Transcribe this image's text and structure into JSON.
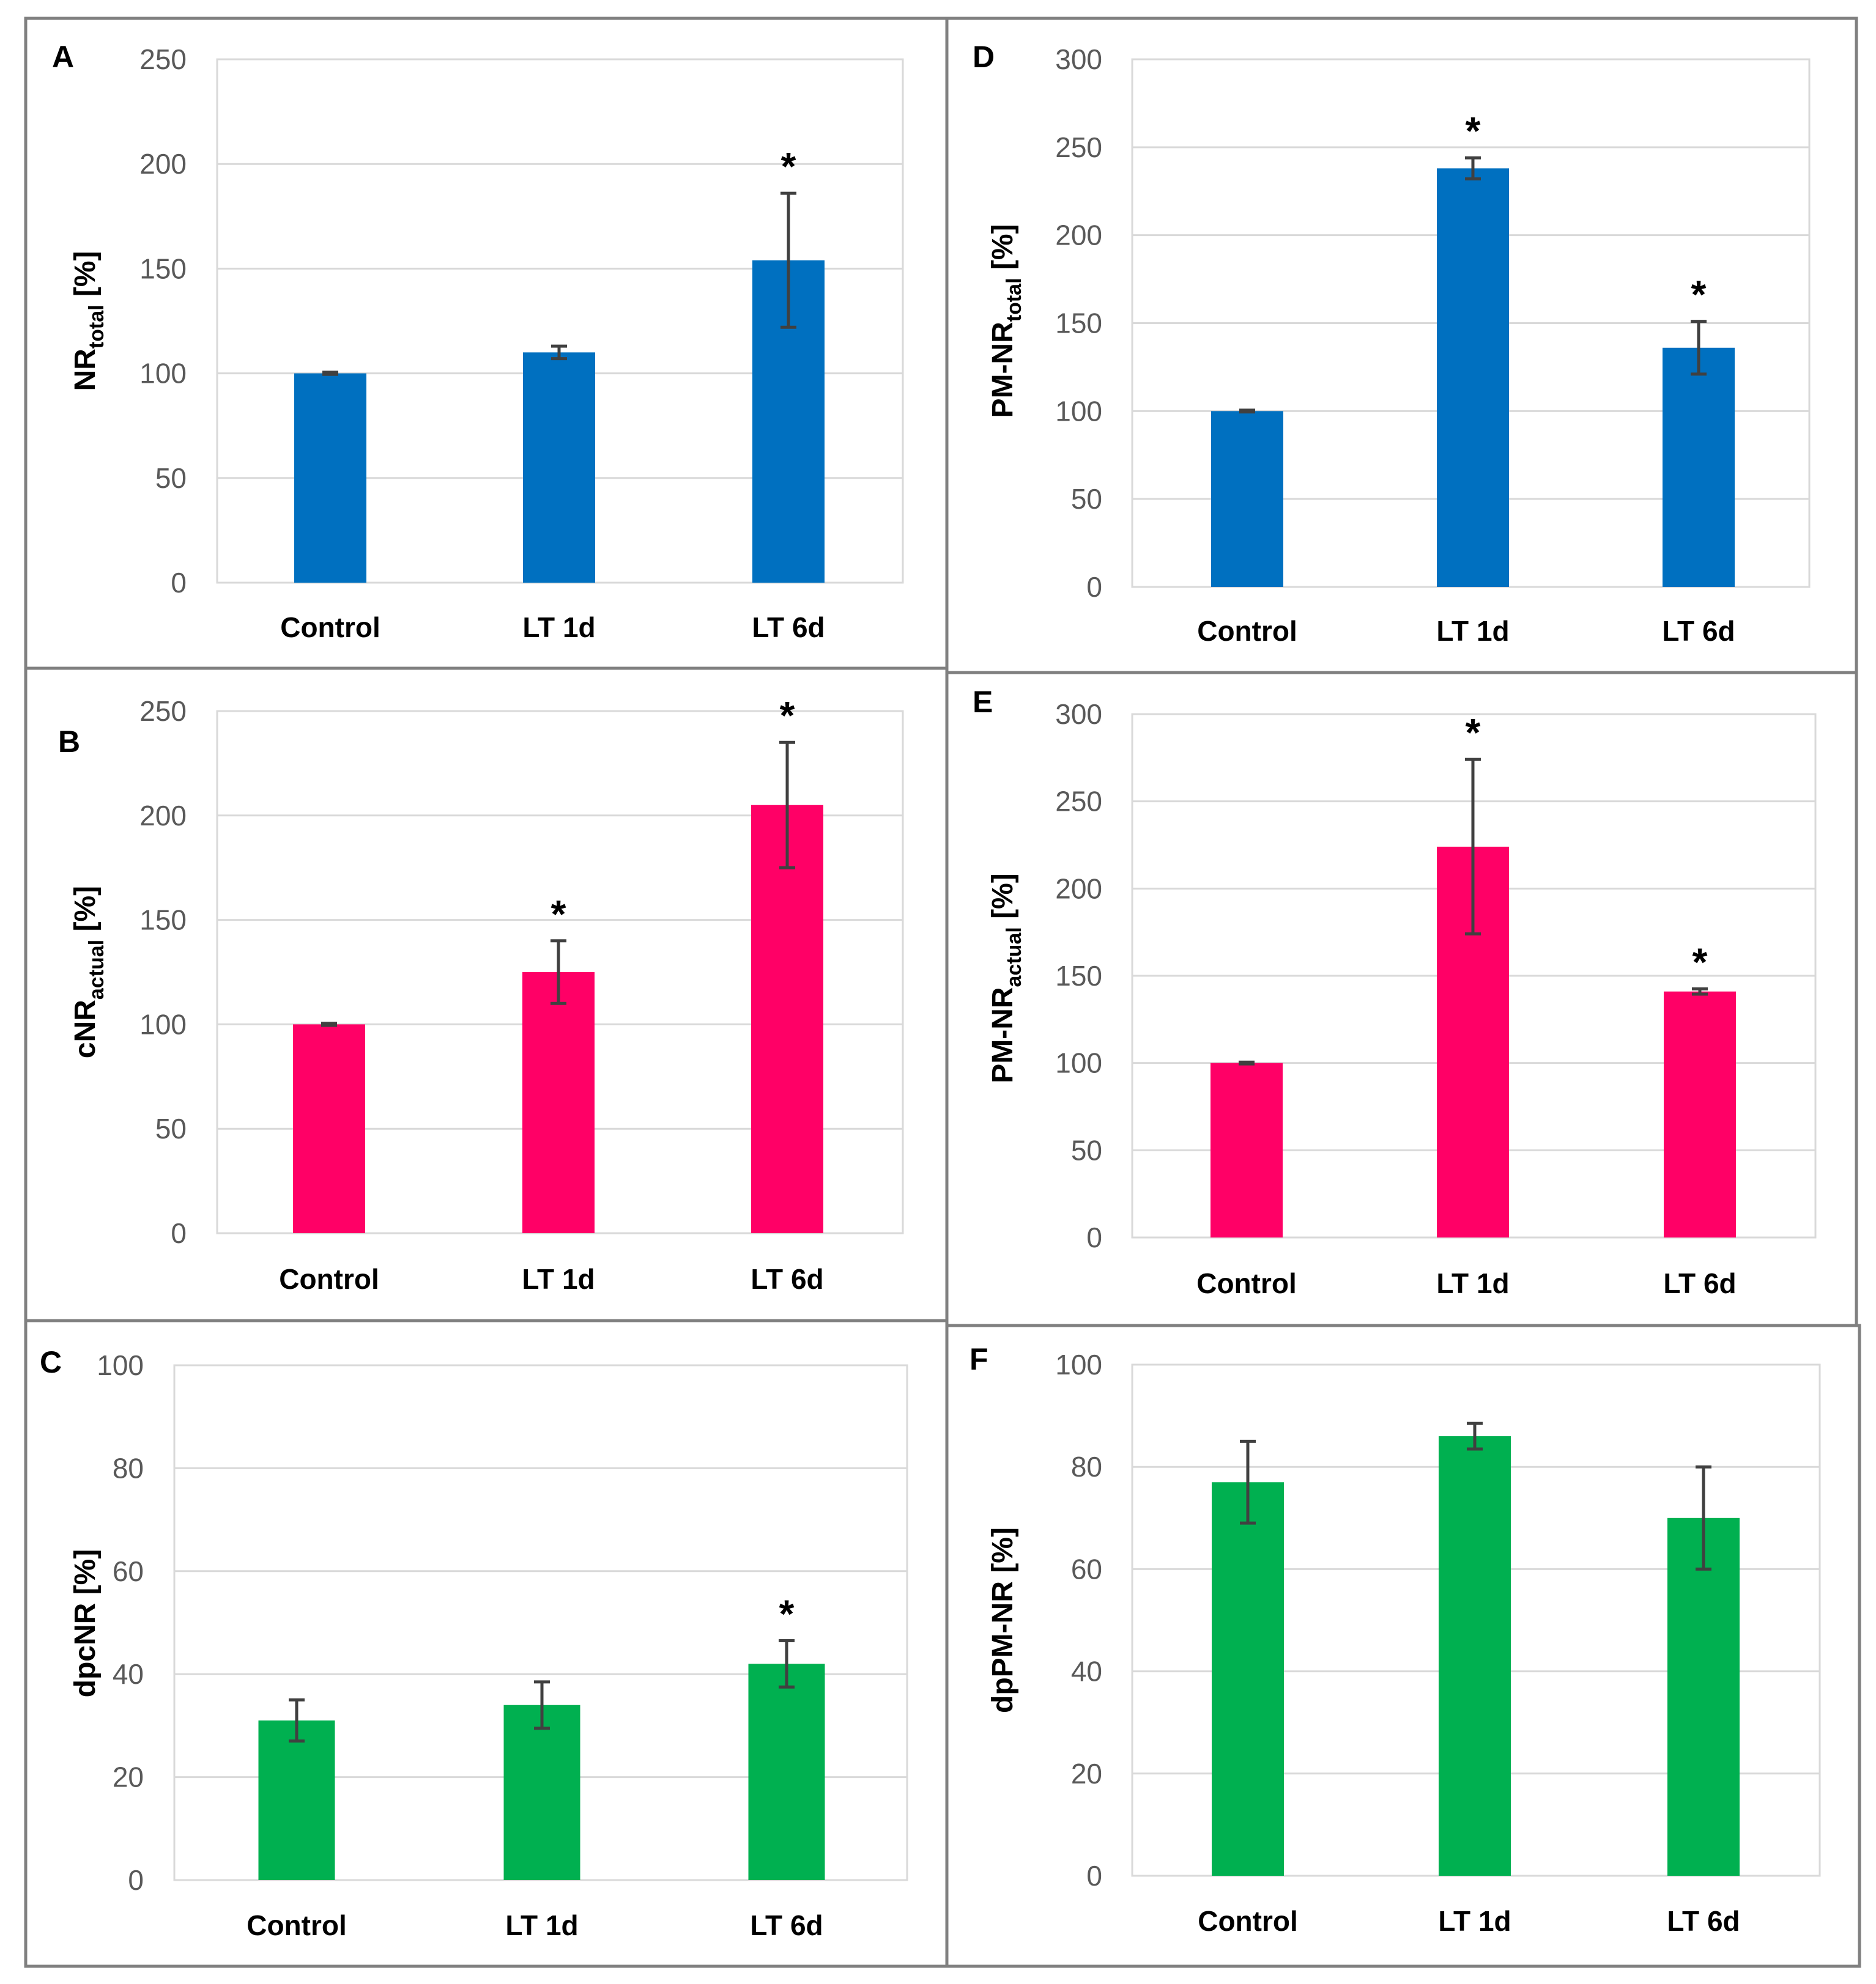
{
  "chart_data": [
    {
      "panel": "A",
      "type": "bar",
      "categories": [
        "Control",
        "LT 1d",
        "LT 6d"
      ],
      "values": [
        100,
        110,
        154
      ],
      "errors": [
        0.5,
        3,
        32
      ],
      "significant": [
        "",
        "",
        "*"
      ],
      "ylabel": {
        "main": "NR",
        "sub": "total",
        "unit": " [%]"
      },
      "ylim": [
        0,
        250
      ],
      "yticks": [
        0,
        50,
        100,
        150,
        200,
        250
      ],
      "color": "#0070C0",
      "grid": true
    },
    {
      "panel": "B",
      "type": "bar",
      "categories": [
        "Control",
        "LT 1d",
        "LT 6d"
      ],
      "values": [
        100,
        125,
        205
      ],
      "errors": [
        0.5,
        15,
        30
      ],
      "significant": [
        "",
        "*",
        "*"
      ],
      "ylabel": {
        "main": "cNR",
        "sub": "actual",
        "unit": " [%]"
      },
      "ylim": [
        0,
        250
      ],
      "yticks": [
        0,
        50,
        100,
        150,
        200,
        250
      ],
      "color": "#FF0066",
      "grid": true
    },
    {
      "panel": "C",
      "type": "bar",
      "categories": [
        "Control",
        "LT 1d",
        "LT 6d"
      ],
      "values": [
        31,
        34,
        42
      ],
      "errors": [
        4,
        4.5,
        4.5
      ],
      "significant": [
        "",
        "",
        "*"
      ],
      "ylabel": {
        "main": "dpcNR",
        "sub": "",
        "unit": " [%]"
      },
      "ylim": [
        0,
        100
      ],
      "yticks": [
        0,
        20,
        40,
        60,
        80,
        100
      ],
      "color": "#00B050",
      "grid": true
    },
    {
      "panel": "D",
      "type": "bar",
      "categories": [
        "Control",
        "LT 1d",
        "LT 6d"
      ],
      "values": [
        100,
        238,
        136
      ],
      "errors": [
        0.5,
        6,
        15
      ],
      "significant": [
        "",
        "*",
        "*"
      ],
      "ylabel": {
        "main": "PM-NR",
        "sub": "total",
        "unit": " [%]"
      },
      "ylim": [
        0,
        300
      ],
      "yticks": [
        0,
        50,
        100,
        150,
        200,
        250,
        300
      ],
      "color": "#0070C0",
      "grid": true
    },
    {
      "panel": "E",
      "type": "bar",
      "categories": [
        "Control",
        "LT 1d",
        "LT 6d"
      ],
      "values": [
        100,
        224,
        141
      ],
      "errors": [
        0.5,
        50,
        1.5
      ],
      "significant": [
        "",
        "*",
        "*"
      ],
      "ylabel": {
        "main": "PM-NR",
        "sub": "actual",
        "unit": " [%]"
      },
      "ylim": [
        0,
        300
      ],
      "yticks": [
        0,
        50,
        100,
        150,
        200,
        250,
        300
      ],
      "color": "#FF0066",
      "grid": true
    },
    {
      "panel": "F",
      "type": "bar",
      "categories": [
        "Control",
        "LT 1d",
        "LT 6d"
      ],
      "values": [
        77,
        86,
        70
      ],
      "errors": [
        8,
        2.5,
        10
      ],
      "significant": [
        "",
        "",
        ""
      ],
      "ylabel": {
        "main": "dpPM-NR",
        "sub": "",
        "unit": " [%]"
      },
      "ylim": [
        0,
        100
      ],
      "yticks": [
        0,
        20,
        40,
        60,
        80,
        100
      ],
      "color": "#00B050",
      "grid": true
    }
  ]
}
